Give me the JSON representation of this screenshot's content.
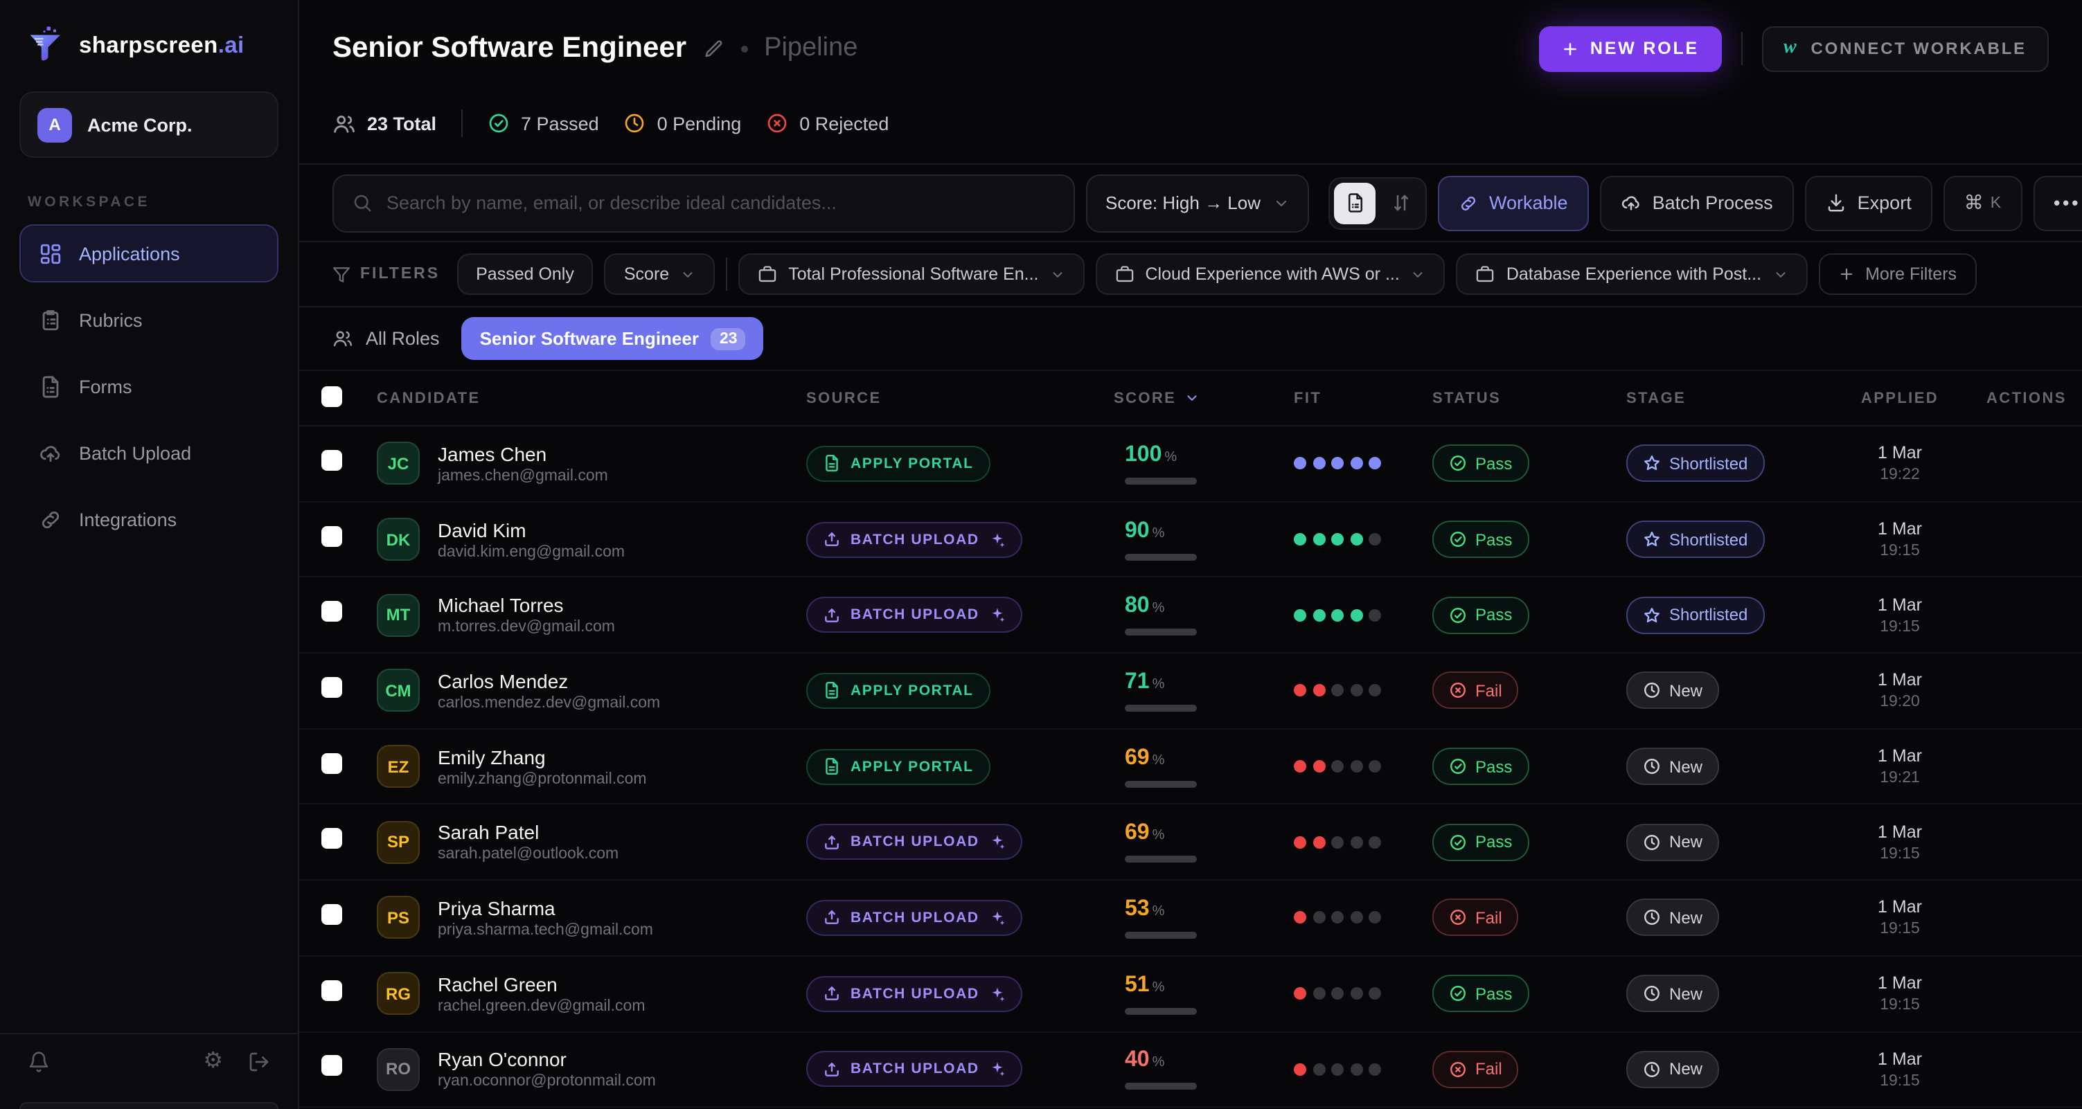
{
  "colors": {
    "accent": "#7c3aed",
    "indigo": "#818cf8",
    "green": "#34d399",
    "amber": "#f5a524",
    "red": "#ef4444",
    "dot_off": "#35353c"
  },
  "app": {
    "brand": "sharpscreen",
    "brand_suffix": ".ai",
    "org_name": "Acme Corp.",
    "org_initial": "A"
  },
  "sidebar": {
    "section_label": "WORKSPACE",
    "items": [
      {
        "label": "Applications"
      },
      {
        "label": "Rubrics"
      },
      {
        "label": "Forms"
      },
      {
        "label": "Batch Upload"
      },
      {
        "label": "Integrations"
      }
    ]
  },
  "header": {
    "title": "Senior Software Engineer",
    "subtitle": "Pipeline",
    "new_role_label": "NEW ROLE",
    "connect_workable_label": "CONNECT WORKABLE",
    "workable_glyph": "w"
  },
  "stats": {
    "total": "23 Total",
    "passed": "7 Passed",
    "pending": "0 Pending",
    "rejected": "0 Rejected"
  },
  "toolbar": {
    "search_placeholder": "Search by name, email, or describe ideal candidates...",
    "sort_label": "Score: High → Low",
    "workable_label": "Workable",
    "batch_process_label": "Batch Process",
    "export_label": "Export",
    "shortcut_cmd": "⌘",
    "shortcut_key": "K",
    "more_label": "•••"
  },
  "filters": {
    "label": "FILTERS",
    "chips": [
      {
        "label": "Passed Only",
        "caret": false
      },
      {
        "label": "Score",
        "caret": true
      }
    ],
    "dropdowns": [
      {
        "label": "Total Professional Software En..."
      },
      {
        "label": "Cloud Experience with AWS or ..."
      },
      {
        "label": "Database Experience with Post..."
      }
    ],
    "more_label": "More Filters"
  },
  "tabs": {
    "all_label": "All Roles",
    "active_label": "Senior Software Engineer",
    "active_count": "23"
  },
  "table": {
    "columns": [
      "CANDIDATE",
      "SOURCE",
      "SCORE",
      "FIT",
      "STATUS",
      "STAGE",
      "APPLIED",
      "ACTIONS"
    ],
    "source_labels": {
      "apply": "APPLY PORTAL",
      "batch": "BATCH UPLOAD"
    },
    "rows": [
      {
        "initials": "JC",
        "name": "James Chen",
        "email": "james.chen@gmail.com",
        "avatar_tone": "green",
        "source": "apply",
        "score": 100,
        "score_tone": "green",
        "fit_filled": 5,
        "fit_tone": "indigo",
        "status": "Pass",
        "stage": "Shortlisted",
        "date": "1 Mar",
        "time": "19:22"
      },
      {
        "initials": "DK",
        "name": "David Kim",
        "email": "david.kim.eng@gmail.com",
        "avatar_tone": "green",
        "source": "batch",
        "score": 90,
        "score_tone": "green",
        "fit_filled": 4,
        "fit_tone": "green",
        "status": "Pass",
        "stage": "Shortlisted",
        "date": "1 Mar",
        "time": "19:15"
      },
      {
        "initials": "MT",
        "name": "Michael Torres",
        "email": "m.torres.dev@gmail.com",
        "avatar_tone": "green",
        "source": "batch",
        "score": 80,
        "score_tone": "green",
        "fit_filled": 4,
        "fit_tone": "green",
        "status": "Pass",
        "stage": "Shortlisted",
        "date": "1 Mar",
        "time": "19:15"
      },
      {
        "initials": "CM",
        "name": "Carlos Mendez",
        "email": "carlos.mendez.dev@gmail.com",
        "avatar_tone": "green",
        "source": "apply",
        "score": 71,
        "score_tone": "green",
        "fit_filled": 2,
        "fit_tone": "red",
        "status": "Fail",
        "stage": "New",
        "date": "1 Mar",
        "time": "19:20"
      },
      {
        "initials": "EZ",
        "name": "Emily Zhang",
        "email": "emily.zhang@protonmail.com",
        "avatar_tone": "amber",
        "source": "apply",
        "score": 69,
        "score_tone": "amber",
        "fit_filled": 2,
        "fit_tone": "red",
        "status": "Pass",
        "stage": "New",
        "date": "1 Mar",
        "time": "19:21"
      },
      {
        "initials": "SP",
        "name": "Sarah Patel",
        "email": "sarah.patel@outlook.com",
        "avatar_tone": "amber",
        "source": "batch",
        "score": 69,
        "score_tone": "amber",
        "fit_filled": 2,
        "fit_tone": "red",
        "status": "Pass",
        "stage": "New",
        "date": "1 Mar",
        "time": "19:15"
      },
      {
        "initials": "PS",
        "name": "Priya Sharma",
        "email": "priya.sharma.tech@gmail.com",
        "avatar_tone": "amber",
        "source": "batch",
        "score": 53,
        "score_tone": "amber",
        "fit_filled": 1,
        "fit_tone": "red",
        "status": "Fail",
        "stage": "New",
        "date": "1 Mar",
        "time": "19:15"
      },
      {
        "initials": "RG",
        "name": "Rachel Green",
        "email": "rachel.green.dev@gmail.com",
        "avatar_tone": "amber",
        "source": "batch",
        "score": 51,
        "score_tone": "amber",
        "fit_filled": 1,
        "fit_tone": "red",
        "status": "Pass",
        "stage": "New",
        "date": "1 Mar",
        "time": "19:15"
      },
      {
        "initials": "RO",
        "name": "Ryan O'connor",
        "email": "ryan.oconnor@protonmail.com",
        "avatar_tone": "gray",
        "source": "batch",
        "score": 40,
        "score_tone": "red",
        "fit_filled": 1,
        "fit_tone": "red",
        "status": "Fail",
        "stage": "New",
        "date": "1 Mar",
        "time": "19:15"
      }
    ]
  }
}
